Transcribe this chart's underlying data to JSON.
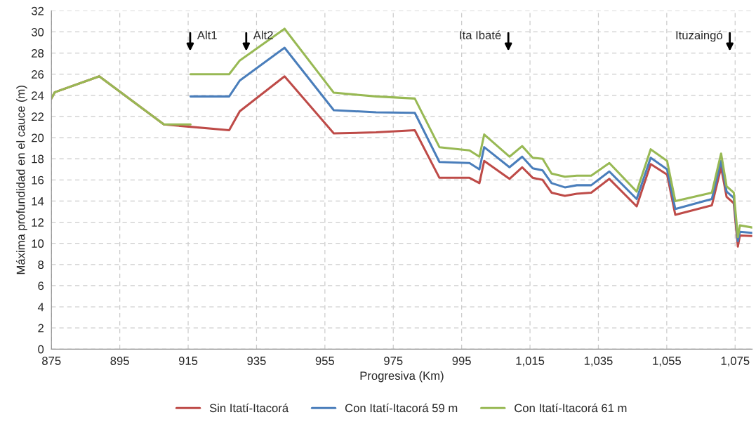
{
  "chart_data": {
    "type": "line",
    "xlabel": "Progresiva (Km)",
    "ylabel": "Máxima profundidad en el cauce (m)",
    "xlim": [
      875,
      1080
    ],
    "ylim": [
      0,
      32
    ],
    "xticks": [
      875,
      895,
      915,
      935,
      955,
      975,
      995,
      {
        "value": 1015,
        "label": "1,015"
      },
      {
        "value": 1035,
        "label": "1,035"
      },
      {
        "value": 1055,
        "label": "1,055"
      },
      {
        "value": 1075,
        "label": "1,075"
      }
    ],
    "yticks": [
      0,
      2,
      4,
      6,
      8,
      10,
      12,
      14,
      16,
      18,
      20,
      22,
      24,
      26,
      28,
      30,
      32
    ],
    "grid": true,
    "legend": "bottom",
    "marker": "none",
    "line_style": "solid",
    "series": [
      {
        "name": "Sin Itatí-Itacorá",
        "color": "#be4b48",
        "x": [
          875,
          876,
          889,
          907.9,
          927.0,
          930.1,
          943.2,
          957.6,
          970,
          981.3,
          988.5,
          997.3,
          1000.2,
          1001.6,
          1009.0,
          1012.7,
          1015.8,
          1018.7,
          1021.3,
          1025.2,
          1028.7,
          1032.9,
          1038.2,
          1046.2,
          1050.3,
          1055.1,
          1057.5,
          1068.2,
          1070.9,
          1072.5,
          1074.6,
          1075.8,
          1076.4,
          1080
        ],
        "values": [
          23.7,
          24.3,
          25.8,
          21.25,
          20.7,
          22.5,
          25.8,
          20.4,
          20.5,
          20.7,
          16.2,
          16.2,
          15.7,
          17.8,
          16.1,
          17.2,
          16.2,
          16.0,
          14.8,
          14.5,
          14.7,
          14.8,
          16.1,
          13.5,
          17.5,
          16.5,
          12.7,
          13.6,
          17.2,
          14.4,
          13.8,
          9.7,
          10.75,
          10.7
        ]
      },
      {
        "name": "Con Itatí-Itacorá 59 m",
        "color": "#4a7ebb",
        "x": [
          915.7,
          927.0,
          930.1,
          943.2,
          957.6,
          970,
          981.3,
          988.5,
          997.3,
          1000.2,
          1001.6,
          1009.0,
          1012.7,
          1015.8,
          1018.7,
          1021.3,
          1025.2,
          1028.7,
          1032.9,
          1038.2,
          1046.2,
          1050.3,
          1055.1,
          1057.5,
          1068.2,
          1070.9,
          1072.5,
          1074.6,
          1075.8,
          1076.4,
          1080
        ],
        "values": [
          23.9,
          23.9,
          25.4,
          28.5,
          22.6,
          22.4,
          22.35,
          17.7,
          17.6,
          17.0,
          19.1,
          17.2,
          18.2,
          17.1,
          16.9,
          15.7,
          15.3,
          15.5,
          15.5,
          16.8,
          14.2,
          18.1,
          17.0,
          13.25,
          14.2,
          17.8,
          14.9,
          14.3,
          10.2,
          11.1,
          11.0
        ]
      },
      {
        "color": "#98b954",
        "x": [
          875,
          876,
          889,
          907.9,
          915.7
        ],
        "values": [
          23.7,
          24.3,
          25.8,
          21.25,
          21.25
        ]
      },
      {
        "name": "Con Itatí-Itacorá 61 m",
        "color": "#98b954",
        "x": [
          915.7,
          927.0,
          930.1,
          943.2,
          957.6,
          970,
          981.3,
          988.5,
          997.3,
          1000.2,
          1001.6,
          1009.0,
          1012.7,
          1015.8,
          1018.7,
          1021.3,
          1025.2,
          1028.7,
          1032.9,
          1038.2,
          1046.2,
          1050.3,
          1055.1,
          1057.5,
          1068.2,
          1070.9,
          1072.5,
          1074.6,
          1075.8,
          1076.4,
          1080
        ],
        "values": [
          26.0,
          26.0,
          27.3,
          30.3,
          24.25,
          23.9,
          23.7,
          19.1,
          18.8,
          18.2,
          20.3,
          18.2,
          19.2,
          18.1,
          18.0,
          16.6,
          16.3,
          16.4,
          16.4,
          17.6,
          14.9,
          18.9,
          17.8,
          14.0,
          14.8,
          18.5,
          15.4,
          14.8,
          10.6,
          11.7,
          11.5
        ]
      }
    ],
    "annotations": [
      "Alt1",
      "Alt2",
      "Ita Ibaté",
      "Ituzaingó"
    ]
  }
}
